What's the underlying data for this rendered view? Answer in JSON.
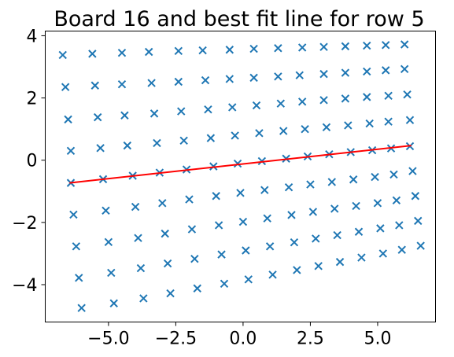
{
  "chart_data": {
    "type": "scatter",
    "title": "Board 16 and best fit line for row 5",
    "xlabel": "",
    "ylabel": "",
    "xlim": [
      -7.35,
      7.15
    ],
    "ylim": [
      -5.2,
      4.15
    ],
    "xticks": [
      -5.0,
      -2.5,
      0.0,
      2.5,
      5.0
    ],
    "xtick_labels": [
      "−5.0",
      "−2.5",
      "0.0",
      "2.5",
      "5.0"
    ],
    "yticks": [
      -4,
      -2,
      0,
      2,
      4
    ],
    "ytick_labels": [
      "−4",
      "−2",
      "0",
      "2",
      "4"
    ],
    "grid": false,
    "legend": "none",
    "colors": {
      "points": "#1f77b4",
      "fit_line": "#ff0000"
    },
    "points": {
      "marker": "x",
      "rows": [
        [
          [
            -6.7,
            3.38
          ],
          [
            -5.6,
            3.42
          ],
          [
            -4.5,
            3.45
          ],
          [
            -3.5,
            3.48
          ],
          [
            -2.4,
            3.51
          ],
          [
            -1.5,
            3.53
          ],
          [
            -0.5,
            3.55
          ],
          [
            0.4,
            3.58
          ],
          [
            1.3,
            3.6
          ],
          [
            2.2,
            3.62
          ],
          [
            3.0,
            3.64
          ],
          [
            3.8,
            3.66
          ],
          [
            4.6,
            3.68
          ],
          [
            5.3,
            3.7
          ],
          [
            6.0,
            3.72
          ]
        ],
        [
          [
            -6.6,
            2.35
          ],
          [
            -5.5,
            2.4
          ],
          [
            -4.5,
            2.44
          ],
          [
            -3.4,
            2.48
          ],
          [
            -2.4,
            2.52
          ],
          [
            -1.4,
            2.57
          ],
          [
            -0.5,
            2.61
          ],
          [
            0.4,
            2.65
          ],
          [
            1.3,
            2.69
          ],
          [
            2.1,
            2.73
          ],
          [
            3.0,
            2.77
          ],
          [
            3.8,
            2.81
          ],
          [
            4.6,
            2.85
          ],
          [
            5.3,
            2.89
          ],
          [
            6.0,
            2.93
          ]
        ],
        [
          [
            -6.5,
            1.31
          ],
          [
            -5.4,
            1.38
          ],
          [
            -4.4,
            1.44
          ],
          [
            -3.3,
            1.5
          ],
          [
            -2.3,
            1.57
          ],
          [
            -1.3,
            1.63
          ],
          [
            -0.4,
            1.7
          ],
          [
            0.5,
            1.76
          ],
          [
            1.4,
            1.82
          ],
          [
            2.2,
            1.88
          ],
          [
            3.0,
            1.93
          ],
          [
            3.8,
            1.98
          ],
          [
            4.6,
            2.03
          ],
          [
            5.4,
            2.07
          ],
          [
            6.1,
            2.11
          ]
        ],
        [
          [
            -6.4,
            0.3
          ],
          [
            -5.3,
            0.39
          ],
          [
            -4.3,
            0.47
          ],
          [
            -3.2,
            0.55
          ],
          [
            -2.2,
            0.63
          ],
          [
            -1.2,
            0.71
          ],
          [
            -0.3,
            0.79
          ],
          [
            0.6,
            0.87
          ],
          [
            1.5,
            0.94
          ],
          [
            2.3,
            1.0
          ],
          [
            3.1,
            1.06
          ],
          [
            3.9,
            1.12
          ],
          [
            4.7,
            1.18
          ],
          [
            5.4,
            1.24
          ],
          [
            6.2,
            1.29
          ]
        ],
        [
          [
            -6.4,
            -0.73
          ],
          [
            -5.2,
            -0.61
          ],
          [
            -4.1,
            -0.5
          ],
          [
            -3.1,
            -0.4
          ],
          [
            -2.1,
            -0.3
          ],
          [
            -1.1,
            -0.2
          ],
          [
            -0.2,
            -0.11
          ],
          [
            0.7,
            -0.03
          ],
          [
            1.6,
            0.05
          ],
          [
            2.4,
            0.12
          ],
          [
            3.2,
            0.19
          ],
          [
            4.0,
            0.26
          ],
          [
            4.8,
            0.32
          ],
          [
            5.5,
            0.38
          ],
          [
            6.2,
            0.45
          ]
        ],
        [
          [
            -6.3,
            -1.75
          ],
          [
            -5.1,
            -1.62
          ],
          [
            -4.0,
            -1.5
          ],
          [
            -3.0,
            -1.38
          ],
          [
            -2.0,
            -1.26
          ],
          [
            -1.0,
            -1.15
          ],
          [
            -0.1,
            -1.05
          ],
          [
            0.8,
            -0.96
          ],
          [
            1.7,
            -0.87
          ],
          [
            2.5,
            -0.78
          ],
          [
            3.3,
            -0.7
          ],
          [
            4.1,
            -0.62
          ],
          [
            4.9,
            -0.54
          ],
          [
            5.6,
            -0.46
          ],
          [
            6.3,
            -0.35
          ]
        ],
        [
          [
            -6.2,
            -2.77
          ],
          [
            -5.0,
            -2.63
          ],
          [
            -3.9,
            -2.5
          ],
          [
            -2.9,
            -2.36
          ],
          [
            -1.9,
            -2.22
          ],
          [
            -0.9,
            -2.09
          ],
          [
            0.0,
            -1.98
          ],
          [
            0.9,
            -1.87
          ],
          [
            1.8,
            -1.76
          ],
          [
            2.6,
            -1.66
          ],
          [
            3.4,
            -1.56
          ],
          [
            4.2,
            -1.47
          ],
          [
            5.0,
            -1.38
          ],
          [
            5.7,
            -1.29
          ],
          [
            6.4,
            -1.15
          ]
        ],
        [
          [
            -6.1,
            -3.78
          ],
          [
            -4.9,
            -3.62
          ],
          [
            -3.8,
            -3.47
          ],
          [
            -2.8,
            -3.32
          ],
          [
            -1.8,
            -3.17
          ],
          [
            -0.8,
            -3.03
          ],
          [
            0.1,
            -2.9
          ],
          [
            1.0,
            -2.77
          ],
          [
            1.9,
            -2.64
          ],
          [
            2.7,
            -2.52
          ],
          [
            3.5,
            -2.41
          ],
          [
            4.3,
            -2.3
          ],
          [
            5.1,
            -2.19
          ],
          [
            5.8,
            -2.09
          ],
          [
            6.5,
            -1.95
          ]
        ],
        [
          [
            -6.0,
            -4.75
          ],
          [
            -4.8,
            -4.6
          ],
          [
            -3.7,
            -4.44
          ],
          [
            -2.7,
            -4.28
          ],
          [
            -1.7,
            -4.12
          ],
          [
            -0.7,
            -3.97
          ],
          [
            0.2,
            -3.83
          ],
          [
            1.1,
            -3.68
          ],
          [
            2.0,
            -3.53
          ],
          [
            2.8,
            -3.4
          ],
          [
            3.6,
            -3.27
          ],
          [
            4.4,
            -3.13
          ],
          [
            5.2,
            -3.0
          ],
          [
            5.9,
            -2.88
          ],
          [
            6.6,
            -2.75
          ]
        ]
      ]
    },
    "fit_line": {
      "row": 5,
      "x": [
        -6.45,
        6.25
      ],
      "y": [
        -0.73,
        0.47
      ]
    }
  }
}
